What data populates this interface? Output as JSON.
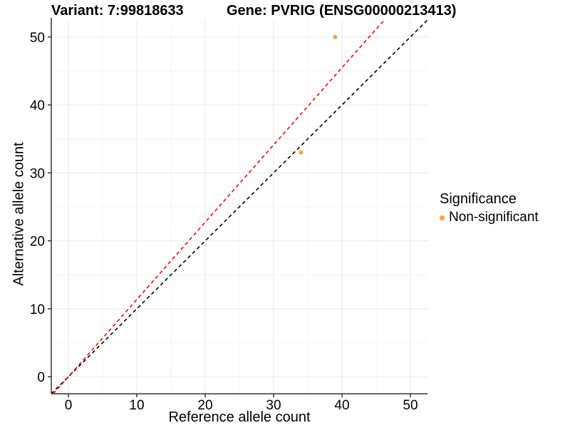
{
  "titles": {
    "variant": "Variant: 7:99818633",
    "gene": "Gene: PVRIG (ENSG00000213413)"
  },
  "legend": {
    "title": "Significance",
    "items": [
      {
        "label": "Non-significant",
        "color": "#F8A33C"
      }
    ]
  },
  "colors": {
    "grid_major": "#E9E9E9",
    "grid_minor": "#F4F4F4",
    "axis_line": "#333333",
    "tick_text": "#000000"
  },
  "chart_data": {
    "type": "scatter",
    "title": "Variant: 7:99818633   Gene: PVRIG (ENSG00000213413)",
    "xlabel": "Reference allele count",
    "ylabel": "Alternative allele count",
    "xlim": [
      -2.5,
      52.5
    ],
    "ylim": [
      -2.5,
      52.5
    ],
    "x_ticks": [
      0,
      10,
      20,
      30,
      40,
      50
    ],
    "y_ticks": [
      0,
      10,
      20,
      30,
      40,
      50
    ],
    "x_minor_ticks": [
      5,
      15,
      25,
      35,
      45
    ],
    "y_minor_ticks": [
      5,
      15,
      25,
      35,
      45
    ],
    "grid": true,
    "legend_position": "right",
    "series": [
      {
        "name": "Non-significant",
        "color": "#F8A33C",
        "points": [
          [
            39,
            50
          ],
          [
            34,
            33
          ]
        ]
      }
    ],
    "lines": [
      {
        "name": "identity-line",
        "slope": 1.0,
        "intercept": 0,
        "color": "#000000",
        "style": "dashed"
      },
      {
        "name": "expected-ratio-line",
        "slope": 1.137,
        "intercept": 0,
        "color": "#FF0000",
        "style": "dashed"
      }
    ]
  }
}
